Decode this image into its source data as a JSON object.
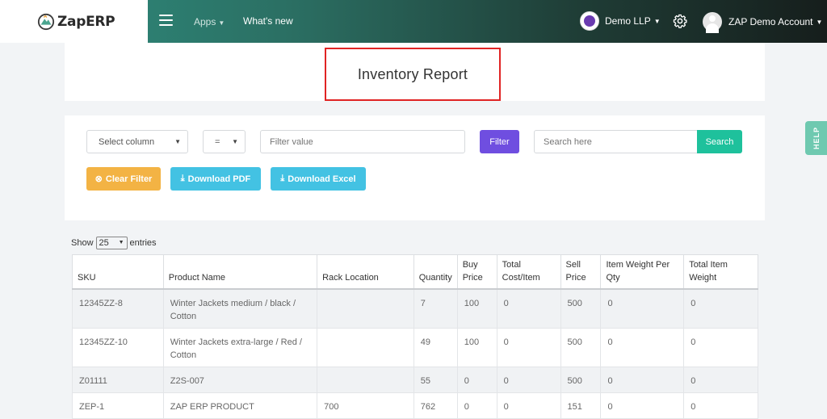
{
  "brand": {
    "name": "ZapERP",
    "logo": "zaperp-logo"
  },
  "nav": {
    "apps_label": "Apps",
    "whats_new_label": "What's new"
  },
  "company": {
    "name": "Demo LLP"
  },
  "account": {
    "name": "ZAP Demo Account"
  },
  "page": {
    "title": "Inventory Report"
  },
  "filters": {
    "column_select": "Select column",
    "operator_select": "=",
    "filter_placeholder": "Filter value",
    "filter_button": "Filter",
    "search_placeholder": "Search here",
    "search_button": "Search",
    "clear_button": "Clear Filter",
    "download_pdf": "Download PDF",
    "download_excel": "Download Excel"
  },
  "help_tab": "HELP",
  "entries": {
    "show_label": "Show",
    "value": "25",
    "suffix": "entries"
  },
  "table": {
    "columns": [
      "SKU",
      "Product Name",
      "Rack Location",
      "Quantity",
      "Buy Price",
      "Total Cost/Item",
      "Sell Price",
      "Item Weight Per Qty",
      "Total Item Weight"
    ],
    "rows": [
      [
        "12345ZZ-8",
        "Winter Jackets medium / black / Cotton",
        "",
        "7",
        "100",
        "0",
        "500",
        "0",
        "0"
      ],
      [
        "12345ZZ-10",
        "Winter Jackets extra-large / Red / Cotton",
        "",
        "49",
        "100",
        "0",
        "500",
        "0",
        "0"
      ],
      [
        "Z01111",
        "Z2S-007",
        "",
        "55",
        "0",
        "0",
        "500",
        "0",
        "0"
      ],
      [
        "ZEP-1",
        "ZAP ERP PRODUCT",
        "700",
        "762",
        "0",
        "0",
        "151",
        "0",
        "0"
      ]
    ]
  },
  "colors": {
    "accent_purple": "#6f4ee0",
    "search_green": "#1ec19c",
    "clear_orange": "#f3b344",
    "download_blue": "#43c2e3",
    "highlight_red": "#e02424"
  }
}
